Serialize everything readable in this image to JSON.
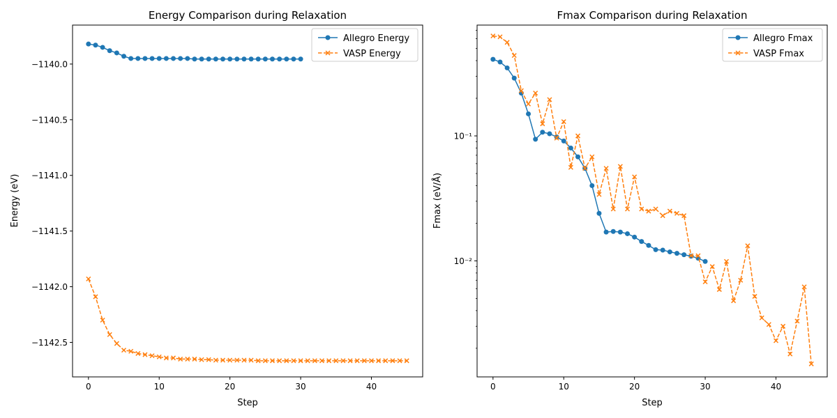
{
  "chart_data": [
    {
      "type": "line",
      "title": "Energy Comparison during Relaxation",
      "xlabel": "Step",
      "ylabel": "Energy (eV)",
      "xlim": [
        -2.25,
        47.25
      ],
      "ylim": [
        -1142.81,
        -1139.65
      ],
      "yscale": "linear",
      "xticks": [
        0,
        10,
        20,
        30,
        40
      ],
      "xtick_labels": [
        "0",
        "10",
        "20",
        "30",
        "40"
      ],
      "yticks": [
        -1140.0,
        -1140.5,
        -1141.0,
        -1141.5,
        -1142.0,
        -1142.5
      ],
      "ytick_labels": [
        "−1140.0",
        "−1140.5",
        "−1141.0",
        "−1141.5",
        "−1142.0",
        "−1142.5"
      ],
      "grid": false,
      "legend": "top-right",
      "series": [
        {
          "name": "Allegro Energy",
          "color": "#1f77b4",
          "marker": "circle",
          "linestyle": "solid",
          "x": [
            0,
            1,
            2,
            3,
            4,
            5,
            6,
            7,
            8,
            9,
            10,
            11,
            12,
            13,
            14,
            15,
            16,
            17,
            18,
            19,
            20,
            21,
            22,
            23,
            24,
            25,
            26,
            27,
            28,
            29,
            30
          ],
          "y": [
            -1139.82,
            -1139.83,
            -1139.85,
            -1139.88,
            -1139.9,
            -1139.93,
            -1139.95,
            -1139.95,
            -1139.95,
            -1139.95,
            -1139.95,
            -1139.95,
            -1139.95,
            -1139.95,
            -1139.95,
            -1139.955,
            -1139.955,
            -1139.955,
            -1139.955,
            -1139.955,
            -1139.955,
            -1139.955,
            -1139.955,
            -1139.955,
            -1139.955,
            -1139.955,
            -1139.955,
            -1139.955,
            -1139.955,
            -1139.955,
            -1139.955
          ]
        },
        {
          "name": "VASP Energy",
          "color": "#ff7f0e",
          "marker": "x",
          "linestyle": "dashed",
          "x": [
            0,
            1,
            2,
            3,
            4,
            5,
            6,
            7,
            8,
            9,
            10,
            11,
            12,
            13,
            14,
            15,
            16,
            17,
            18,
            19,
            20,
            21,
            22,
            23,
            24,
            25,
            26,
            27,
            28,
            29,
            30,
            31,
            32,
            33,
            34,
            35,
            36,
            37,
            38,
            39,
            40,
            41,
            42,
            43,
            44,
            45
          ],
          "y": [
            -1141.93,
            -1142.09,
            -1142.3,
            -1142.43,
            -1142.51,
            -1142.57,
            -1142.58,
            -1142.6,
            -1142.61,
            -1142.62,
            -1142.63,
            -1142.64,
            -1142.64,
            -1142.65,
            -1142.65,
            -1142.65,
            -1142.655,
            -1142.655,
            -1142.66,
            -1142.66,
            -1142.66,
            -1142.66,
            -1142.66,
            -1142.66,
            -1142.665,
            -1142.665,
            -1142.665,
            -1142.665,
            -1142.665,
            -1142.665,
            -1142.665,
            -1142.665,
            -1142.665,
            -1142.665,
            -1142.665,
            -1142.665,
            -1142.665,
            -1142.665,
            -1142.665,
            -1142.665,
            -1142.665,
            -1142.665,
            -1142.665,
            -1142.665,
            -1142.665,
            -1142.665
          ]
        }
      ]
    },
    {
      "type": "line",
      "title": "Fmax Comparison during Relaxation",
      "xlabel": "Step",
      "ylabel": "Fmax (eV/Å)",
      "xlim": [
        -2.25,
        47.25
      ],
      "ylim": [
        0.00118,
        0.77
      ],
      "yscale": "log",
      "xticks": [
        0,
        10,
        20,
        30,
        40
      ],
      "xtick_labels": [
        "0",
        "10",
        "20",
        "30",
        "40"
      ],
      "yticks": [
        0.1,
        0.01
      ],
      "ytick_labels": [
        "10⁻¹",
        "10⁻²"
      ],
      "grid": false,
      "legend": "top-right",
      "series": [
        {
          "name": "Allegro Fmax",
          "color": "#1f77b4",
          "marker": "circle",
          "linestyle": "solid",
          "x": [
            0,
            1,
            2,
            3,
            4,
            5,
            6,
            7,
            8,
            9,
            10,
            11,
            12,
            13,
            14,
            15,
            16,
            17,
            18,
            19,
            20,
            21,
            22,
            23,
            24,
            25,
            26,
            27,
            28,
            29,
            30
          ],
          "y": [
            0.41,
            0.39,
            0.35,
            0.29,
            0.22,
            0.15,
            0.094,
            0.107,
            0.104,
            0.098,
            0.091,
            0.08,
            0.068,
            0.055,
            0.04,
            0.024,
            0.017,
            0.0172,
            0.017,
            0.0165,
            0.0155,
            0.0143,
            0.0133,
            0.0123,
            0.0122,
            0.0118,
            0.0115,
            0.0112,
            0.0109,
            0.0105,
            0.0099
          ]
        },
        {
          "name": "VASP Fmax",
          "color": "#ff7f0e",
          "marker": "x",
          "linestyle": "dashed",
          "x": [
            0,
            1,
            2,
            3,
            4,
            5,
            6,
            7,
            8,
            9,
            10,
            11,
            12,
            13,
            14,
            15,
            16,
            17,
            18,
            19,
            20,
            21,
            22,
            23,
            24,
            25,
            26,
            27,
            28,
            29,
            30,
            31,
            32,
            33,
            34,
            35,
            36,
            37,
            38,
            39,
            40,
            41,
            42,
            43,
            44,
            45
          ],
          "y": [
            0.63,
            0.62,
            0.56,
            0.44,
            0.23,
            0.18,
            0.22,
            0.125,
            0.195,
            0.096,
            0.13,
            0.056,
            0.1,
            0.055,
            0.068,
            0.034,
            0.055,
            0.026,
            0.057,
            0.026,
            0.047,
            0.026,
            0.025,
            0.026,
            0.023,
            0.025,
            0.024,
            0.023,
            0.011,
            0.011,
            0.0068,
            0.009,
            0.0059,
            0.0099,
            0.0048,
            0.007,
            0.0132,
            0.0052,
            0.0035,
            0.0031,
            0.0023,
            0.003,
            0.0018,
            0.0033,
            0.0062,
            0.0015
          ]
        }
      ]
    }
  ]
}
